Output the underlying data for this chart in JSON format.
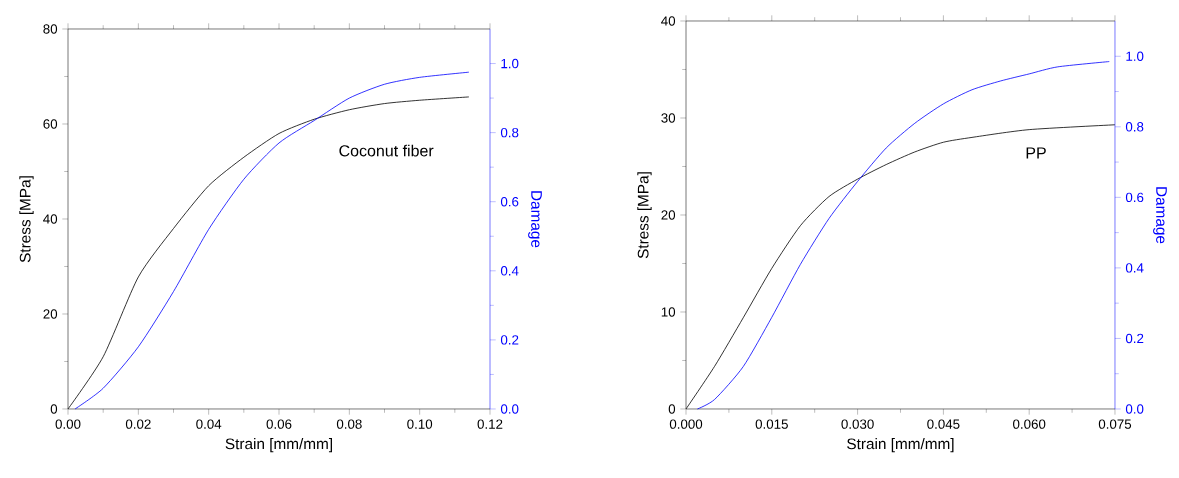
{
  "chart_data": [
    {
      "type": "line",
      "xlabel": "Strain [mm/mm]",
      "ylabel": "Stress [MPa]",
      "y2label": "Damage",
      "annotations": [
        "Coconut fiber"
      ],
      "xlim": [
        0,
        0.12
      ],
      "xticks": [
        {
          "value": 0,
          "label": "0.00"
        },
        {
          "value": 0.02,
          "label": "0.02"
        },
        {
          "value": 0.04,
          "label": "0.04"
        },
        {
          "value": 0.06,
          "label": "0.06"
        },
        {
          "value": 0.08,
          "label": "0.08"
        },
        {
          "value": 0.1,
          "label": "0.10"
        },
        {
          "value": 0.12,
          "label": "0.12"
        }
      ],
      "ylim": [
        0,
        80
      ],
      "yticks": [
        0,
        20,
        40,
        60,
        80
      ],
      "y2lim": [
        0,
        1.1
      ],
      "y2ticks": [
        {
          "value": 0,
          "label": "0.0"
        },
        {
          "value": 0.2,
          "label": "0.2"
        },
        {
          "value": 0.4,
          "label": "0.4"
        },
        {
          "value": 0.6,
          "label": "0.6"
        },
        {
          "value": 0.8,
          "label": "0.8"
        },
        {
          "value": 1.0,
          "label": "1.0"
        }
      ],
      "series": [
        {
          "color": "#000000",
          "x": [
            0,
            0.01,
            0.02,
            0.03,
            0.04,
            0.05,
            0.06,
            0.07,
            0.08,
            0.09,
            0.1,
            0.114
          ],
          "values": [
            0,
            11,
            27.8,
            38,
            47,
            53,
            58,
            61,
            63,
            64.3,
            65,
            65.7
          ]
        },
        {
          "color": "#0000ff",
          "axis": "y2",
          "x": [
            0.002,
            0.01,
            0.02,
            0.03,
            0.04,
            0.05,
            0.06,
            0.07,
            0.08,
            0.09,
            0.1,
            0.114
          ],
          "values": [
            0,
            0.06,
            0.18,
            0.34,
            0.52,
            0.665,
            0.77,
            0.835,
            0.9,
            0.94,
            0.96,
            0.975
          ]
        }
      ]
    },
    {
      "type": "line",
      "xlabel": "Strain [mm/mm]",
      "ylabel": "Stress [MPa]",
      "y2label": "Damage",
      "annotations": [
        "PP"
      ],
      "xlim": [
        0,
        0.075
      ],
      "xticks": [
        {
          "value": 0,
          "label": "0.000"
        },
        {
          "value": 0.015,
          "label": "0.015"
        },
        {
          "value": 0.03,
          "label": "0.030"
        },
        {
          "value": 0.045,
          "label": "0.045"
        },
        {
          "value": 0.06,
          "label": "0.060"
        },
        {
          "value": 0.075,
          "label": "0.075"
        }
      ],
      "ylim": [
        0,
        40
      ],
      "yticks": [
        0,
        10,
        20,
        30,
        40
      ],
      "y2lim": [
        0,
        1.1
      ],
      "y2ticks": [
        {
          "value": 0,
          "label": "0.0"
        },
        {
          "value": 0.2,
          "label": "0.2"
        },
        {
          "value": 0.4,
          "label": "0.4"
        },
        {
          "value": 0.6,
          "label": "0.6"
        },
        {
          "value": 0.8,
          "label": "0.8"
        },
        {
          "value": 1.0,
          "label": "1.0"
        }
      ],
      "series": [
        {
          "color": "#000000",
          "x": [
            0,
            0.005,
            0.01,
            0.015,
            0.02,
            0.025,
            0.03,
            0.035,
            0.04,
            0.045,
            0.05,
            0.06,
            0.075
          ],
          "values": [
            0,
            4.4,
            9.4,
            14.5,
            18.9,
            21.9,
            23.7,
            25.2,
            26.5,
            27.5,
            28,
            28.8,
            29.3
          ]
        },
        {
          "color": "#0000ff",
          "axis": "y2",
          "x": [
            0.002,
            0.005,
            0.01,
            0.015,
            0.02,
            0.025,
            0.03,
            0.035,
            0.04,
            0.045,
            0.05,
            0.055,
            0.06,
            0.065,
            0.074
          ],
          "values": [
            0,
            0.027,
            0.12,
            0.26,
            0.41,
            0.54,
            0.645,
            0.74,
            0.81,
            0.865,
            0.905,
            0.93,
            0.95,
            0.97,
            0.985
          ]
        }
      ]
    }
  ]
}
